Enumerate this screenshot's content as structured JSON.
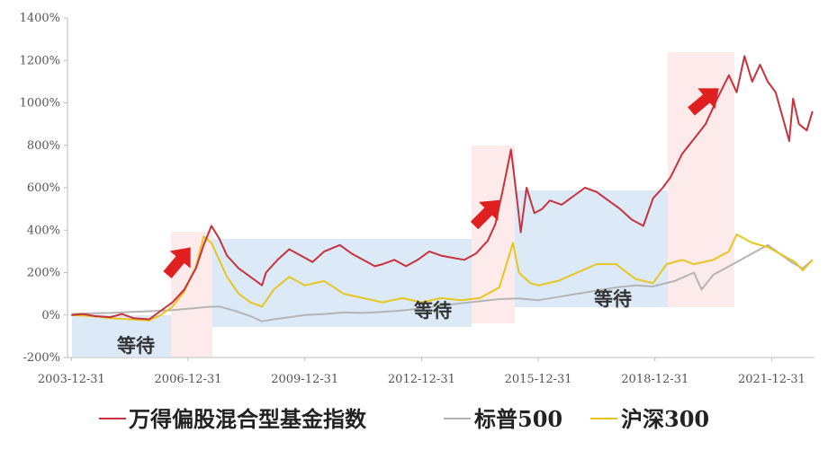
{
  "chart_data": {
    "type": "line",
    "x_unit": "year",
    "xlim": [
      2003.9,
      2023.1
    ],
    "ylim": [
      -200,
      1400
    ],
    "grid": false,
    "legend_position": "bottom",
    "y_ticks": [
      -200,
      0,
      200,
      400,
      600,
      800,
      1000,
      1200,
      1400
    ],
    "y_tick_labels": [
      "-200%",
      "0%",
      "200%",
      "400%",
      "600%",
      "800%",
      "1000%",
      "1200%",
      "1400%"
    ],
    "x_ticks": [
      2004.0,
      2007.0,
      2010.0,
      2013.0,
      2016.0,
      2019.0,
      2022.0
    ],
    "x_tick_labels": [
      "2003-12-31",
      "2006-12-31",
      "2009-12-31",
      "2012-12-31",
      "2015-12-31",
      "2018-12-31",
      "2021-12-31"
    ],
    "series": [
      {
        "name": "万得偏股混合型基金指数",
        "color": "#c8323c",
        "x": [
          2004.0,
          2004.3,
          2004.6,
          2005.0,
          2005.3,
          2005.6,
          2006.0,
          2006.3,
          2006.6,
          2006.9,
          2007.2,
          2007.4,
          2007.6,
          2007.8,
          2008.0,
          2008.3,
          2008.6,
          2008.9,
          2009.0,
          2009.3,
          2009.6,
          2009.9,
          2010.2,
          2010.5,
          2010.9,
          2011.2,
          2011.5,
          2011.8,
          2012.0,
          2012.3,
          2012.6,
          2012.9,
          2013.2,
          2013.5,
          2013.8,
          2014.1,
          2014.4,
          2014.7,
          2014.9,
          2015.1,
          2015.3,
          2015.45,
          2015.55,
          2015.7,
          2015.9,
          2016.1,
          2016.3,
          2016.6,
          2016.9,
          2017.2,
          2017.5,
          2017.8,
          2018.1,
          2018.4,
          2018.7,
          2018.95,
          2019.2,
          2019.4,
          2019.7,
          2020.0,
          2020.3,
          2020.6,
          2020.9,
          2021.1,
          2021.3,
          2021.5,
          2021.7,
          2021.9,
          2022.1,
          2022.3,
          2022.45,
          2022.55,
          2022.7,
          2022.9,
          2023.05
        ],
        "y": [
          0,
          5,
          -5,
          -10,
          5,
          -15,
          -20,
          20,
          60,
          120,
          220,
          330,
          420,
          360,
          280,
          220,
          180,
          140,
          200,
          260,
          310,
          280,
          250,
          300,
          330,
          290,
          260,
          230,
          240,
          260,
          230,
          260,
          300,
          280,
          270,
          260,
          290,
          350,
          430,
          600,
          780,
          550,
          390,
          600,
          480,
          500,
          540,
          520,
          560,
          600,
          580,
          540,
          500,
          450,
          420,
          550,
          600,
          650,
          760,
          830,
          900,
          1020,
          1130,
          1050,
          1220,
          1100,
          1180,
          1100,
          1050,
          920,
          820,
          1020,
          900,
          870,
          960
        ]
      },
      {
        "name": "标普500",
        "color": "#b4b4b4",
        "x": [
          2004.0,
          2004.5,
          2005.0,
          2005.5,
          2006.0,
          2006.5,
          2007.0,
          2007.5,
          2007.8,
          2008.2,
          2008.6,
          2008.9,
          2009.2,
          2009.6,
          2010.0,
          2010.5,
          2011.0,
          2011.5,
          2012.0,
          2012.5,
          2013.0,
          2013.5,
          2014.0,
          2014.5,
          2015.0,
          2015.5,
          2016.0,
          2016.5,
          2017.0,
          2017.5,
          2018.0,
          2018.5,
          2018.95,
          2019.5,
          2020.0,
          2020.2,
          2020.5,
          2021.0,
          2021.5,
          2021.9,
          2022.2,
          2022.5,
          2022.8,
          2023.05
        ],
        "y": [
          5,
          8,
          10,
          14,
          18,
          22,
          30,
          38,
          40,
          20,
          -5,
          -30,
          -20,
          -10,
          0,
          5,
          12,
          10,
          15,
          22,
          32,
          45,
          55,
          65,
          75,
          78,
          70,
          85,
          100,
          115,
          130,
          140,
          135,
          160,
          200,
          120,
          190,
          240,
          290,
          330,
          290,
          250,
          220,
          260
        ]
      },
      {
        "name": "沪深300",
        "color": "#e8c520",
        "x": [
          2004.0,
          2004.5,
          2005.0,
          2005.5,
          2006.0,
          2006.3,
          2006.6,
          2006.9,
          2007.2,
          2007.4,
          2007.6,
          2007.8,
          2008.0,
          2008.3,
          2008.6,
          2008.9,
          2009.2,
          2009.6,
          2010.0,
          2010.5,
          2011.0,
          2011.5,
          2012.0,
          2012.5,
          2013.0,
          2013.5,
          2014.0,
          2014.5,
          2015.0,
          2015.2,
          2015.35,
          2015.5,
          2015.8,
          2016.0,
          2016.5,
          2017.0,
          2017.5,
          2018.0,
          2018.5,
          2018.95,
          2019.3,
          2019.7,
          2020.0,
          2020.5,
          2020.9,
          2021.1,
          2021.5,
          2021.9,
          2022.3,
          2022.6,
          2022.8,
          2023.05
        ],
        "y": [
          0,
          -5,
          -15,
          -20,
          -25,
          0,
          40,
          110,
          230,
          370,
          340,
          260,
          180,
          100,
          60,
          40,
          120,
          180,
          140,
          160,
          100,
          80,
          60,
          80,
          60,
          80,
          70,
          80,
          130,
          250,
          340,
          200,
          150,
          140,
          160,
          200,
          240,
          240,
          170,
          150,
          240,
          260,
          240,
          260,
          300,
          380,
          340,
          320,
          280,
          250,
          210,
          260
        ]
      }
    ],
    "annotations": [
      {
        "text": "等待",
        "kind": "waiting"
      },
      {
        "text": "等待",
        "kind": "waiting"
      },
      {
        "text": "等待",
        "kind": "waiting"
      }
    ]
  }
}
